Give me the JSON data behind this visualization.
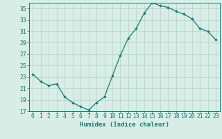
{
  "x": [
    0,
    1,
    2,
    3,
    4,
    5,
    6,
    7,
    8,
    9,
    10,
    11,
    12,
    13,
    14,
    15,
    16,
    17,
    18,
    19,
    20,
    21,
    22,
    23
  ],
  "y": [
    23.5,
    22.2,
    21.5,
    21.8,
    19.5,
    18.5,
    17.8,
    17.2,
    18.5,
    19.5,
    23.2,
    26.8,
    29.8,
    31.5,
    34.2,
    36.0,
    35.5,
    35.2,
    34.5,
    34.0,
    33.2,
    31.5,
    31.0,
    29.5
  ],
  "xlabel": "Humidex (Indice chaleur)",
  "ylim": [
    17,
    36
  ],
  "xlim": [
    -0.5,
    23.5
  ],
  "yticks": [
    17,
    19,
    21,
    23,
    25,
    27,
    29,
    31,
    33,
    35
  ],
  "xticks": [
    0,
    1,
    2,
    3,
    4,
    5,
    6,
    7,
    8,
    9,
    10,
    11,
    12,
    13,
    14,
    15,
    16,
    17,
    18,
    19,
    20,
    21,
    22,
    23
  ],
  "line_color": "#1a7a6e",
  "marker": "D",
  "marker_size": 1.8,
  "bg_color": "#d8ede6",
  "grid_color": "#b8d8ce",
  "axis_color": "#1a7a6e",
  "tick_color": "#1a7a6e",
  "label_fontsize": 6.5,
  "tick_fontsize": 5.8
}
